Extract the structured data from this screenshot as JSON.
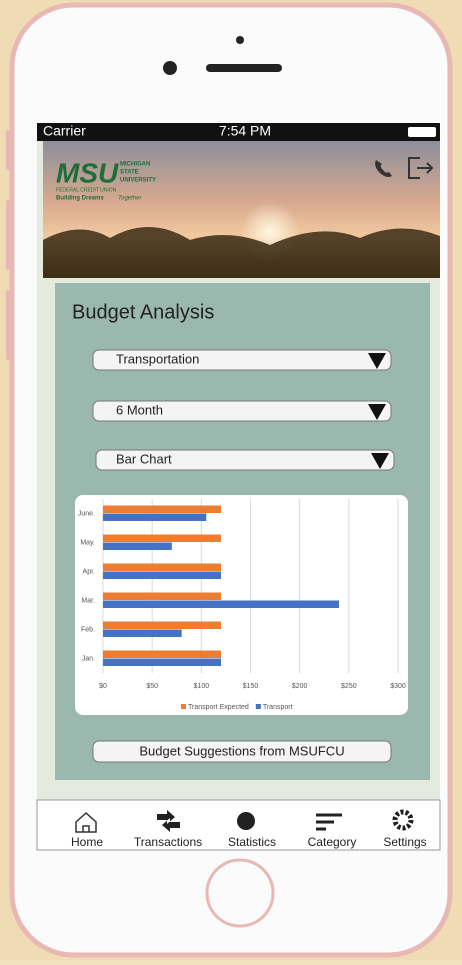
{
  "status_bar": {
    "carrier": "Carrier",
    "time": "7:54 PM"
  },
  "header": {
    "logo": "MSU",
    "logo_lines": [
      "MICHIGAN",
      "STATE",
      "UNIVERSITY"
    ],
    "logo_sub": "FEDERAL CREDIT UNION",
    "tagline": "Building Dreams",
    "tagline_script": "Together"
  },
  "panel": {
    "title": "Budget Analysis",
    "dropdowns": [
      "Transportation",
      "6 Month",
      "Bar Chart"
    ],
    "button": "Budget Suggestions from MSUFCU"
  },
  "chart_data": {
    "type": "hbar",
    "categories": [
      "Jan.",
      "Feb.",
      "Mar.",
      "Apr.",
      "May.",
      "June."
    ],
    "series": [
      {
        "name": "Transport Expected",
        "color": "#ed7d31",
        "values": [
          120,
          120,
          120,
          120,
          120,
          120
        ]
      },
      {
        "name": "Transport",
        "color": "#4472c4",
        "values": [
          120,
          80,
          240,
          120,
          70,
          105
        ]
      }
    ],
    "xlim": [
      0,
      300
    ],
    "xticks": [
      {
        "value": 0,
        "label": "$0"
      },
      {
        "value": 50,
        "label": "$50"
      },
      {
        "value": 100,
        "label": "$100"
      },
      {
        "value": 150,
        "label": "$150"
      },
      {
        "value": 200,
        "label": "$200"
      },
      {
        "value": 250,
        "label": "$250"
      },
      {
        "value": 300,
        "label": "$300"
      }
    ],
    "grid": true,
    "legend": "bottom"
  },
  "tab_bar": [
    "Home",
    "Transactions",
    "Statistics",
    "Category",
    "Settings"
  ]
}
